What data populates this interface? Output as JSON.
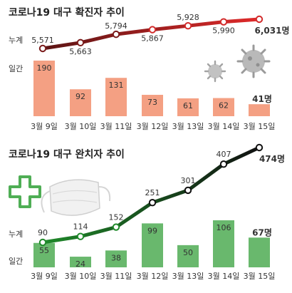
{
  "chart_data": [
    {
      "type": "bar+line",
      "title": "코로나19 대구 확진자 추이",
      "categories": [
        "3월 9일",
        "3월 10일",
        "3월 11일",
        "3월 12일",
        "3월 13일",
        "3월 14일",
        "3월 15일"
      ],
      "cumulative_label": "누계",
      "daily_label": "일간",
      "cumulative": [
        5571,
        5663,
        5794,
        5867,
        5928,
        5990,
        6031
      ],
      "cumulative_text": [
        "5,571",
        "5,663",
        "5,794",
        "5,867",
        "5,928",
        "5,990",
        "6,031명"
      ],
      "daily": [
        190,
        92,
        131,
        73,
        61,
        62,
        41
      ],
      "daily_text": [
        "190",
        "92",
        "131",
        "73",
        "61",
        "62",
        "41명"
      ],
      "colors": {
        "bar": "#f4a083",
        "line_start": "#5a1414",
        "line_end": "#e02a2a"
      },
      "icons": [
        "virus-icon"
      ]
    },
    {
      "type": "bar+line",
      "title": "코로나19 대구 완치자 추이",
      "categories": [
        "3월 9일",
        "3월 10일",
        "3월 11일",
        "3월 12일",
        "3월 13일",
        "3월 14일",
        "3월 15일"
      ],
      "cumulative_label": "누계",
      "daily_label": "일간",
      "cumulative": [
        90,
        114,
        152,
        251,
        301,
        407,
        474
      ],
      "cumulative_text": [
        "90",
        "114",
        "152",
        "251",
        "301",
        "407",
        "474명"
      ],
      "daily": [
        55,
        24,
        38,
        99,
        50,
        106,
        67
      ],
      "daily_text": [
        "55",
        "24",
        "38",
        "99",
        "50",
        "106",
        "67명"
      ],
      "colors": {
        "bar": "#69b86d",
        "line_start": "#1f8a2a",
        "line_end": "#111111"
      },
      "icons": [
        "medical-cross-icon",
        "face-mask-icon"
      ]
    }
  ]
}
